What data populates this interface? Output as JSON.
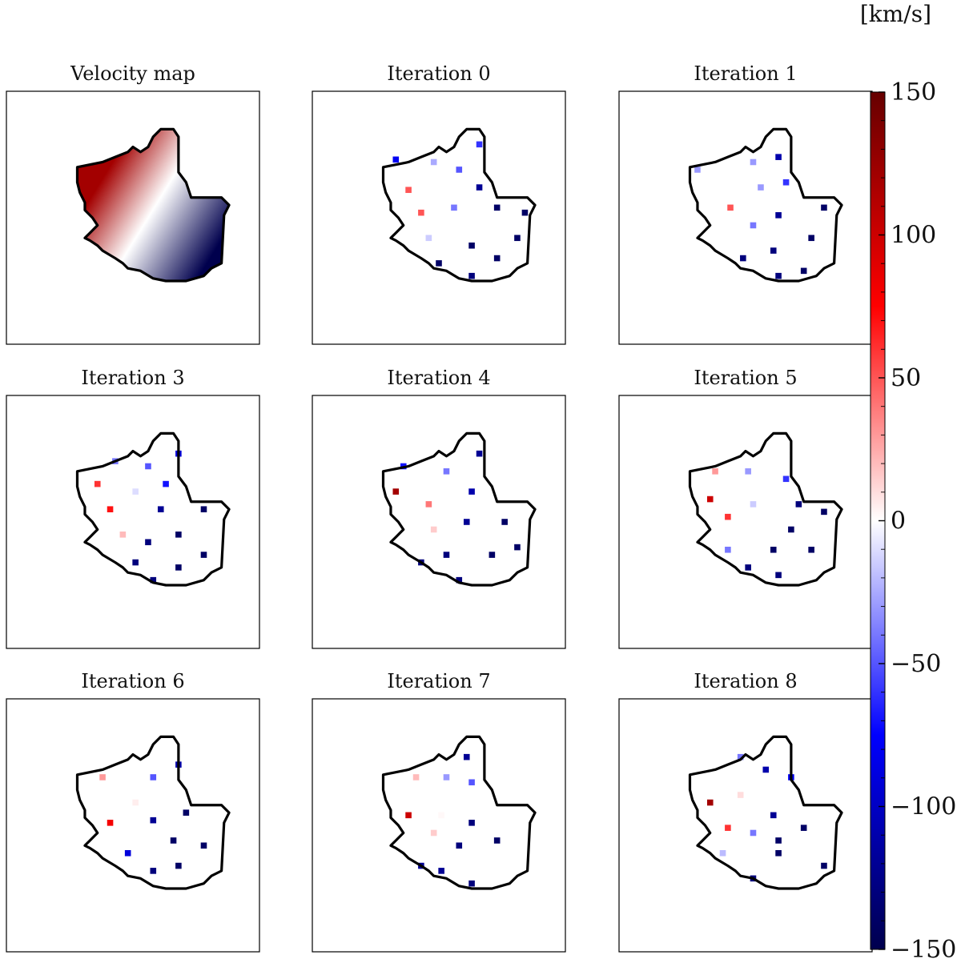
{
  "chart_data": {
    "type": "heatmap",
    "colorbar": {
      "unit": "[km/s]",
      "vmin": -150,
      "vmax": 150,
      "ticks": [
        150,
        100,
        50,
        0,
        -50,
        -100,
        -150
      ],
      "tick_labels": [
        "150",
        "100",
        "50",
        "0",
        "−50",
        "−100",
        "−150"
      ],
      "colormap": "seismic (blue-white-red)"
    },
    "panels": [
      {
        "title": "Velocity map",
        "kind": "map",
        "gradient": [
          {
            "x": 0.35,
            "y": 0.3,
            "value": 120
          },
          {
            "x": 0.55,
            "y": 0.35,
            "value": 0
          },
          {
            "x": 0.8,
            "y": 0.7,
            "value": -150
          }
        ]
      },
      {
        "title": "Iteration 0",
        "kind": "samples",
        "samples": [
          {
            "x": 0.33,
            "y": 0.27,
            "value": -80
          },
          {
            "x": 0.48,
            "y": 0.28,
            "value": -25
          },
          {
            "x": 0.58,
            "y": 0.31,
            "value": -50
          },
          {
            "x": 0.66,
            "y": 0.21,
            "value": -60
          },
          {
            "x": 0.66,
            "y": 0.38,
            "value": -120
          },
          {
            "x": 0.38,
            "y": 0.39,
            "value": 50
          },
          {
            "x": 0.43,
            "y": 0.48,
            "value": 50
          },
          {
            "x": 0.56,
            "y": 0.46,
            "value": -40
          },
          {
            "x": 0.73,
            "y": 0.46,
            "value": -140
          },
          {
            "x": 0.84,
            "y": 0.48,
            "value": -140
          },
          {
            "x": 0.46,
            "y": 0.58,
            "value": -15
          },
          {
            "x": 0.63,
            "y": 0.61,
            "value": -140
          },
          {
            "x": 0.81,
            "y": 0.58,
            "value": -140
          },
          {
            "x": 0.5,
            "y": 0.68,
            "value": -140
          },
          {
            "x": 0.73,
            "y": 0.66,
            "value": -140
          },
          {
            "x": 0.63,
            "y": 0.73,
            "value": -130
          }
        ]
      },
      {
        "title": "Iteration 1",
        "kind": "samples",
        "samples": [
          {
            "x": 0.31,
            "y": 0.31,
            "value": -30
          },
          {
            "x": 0.53,
            "y": 0.28,
            "value": -30
          },
          {
            "x": 0.63,
            "y": 0.26,
            "value": -110
          },
          {
            "x": 0.66,
            "y": 0.36,
            "value": -60
          },
          {
            "x": 0.56,
            "y": 0.38,
            "value": -30
          },
          {
            "x": 0.44,
            "y": 0.46,
            "value": 50
          },
          {
            "x": 0.63,
            "y": 0.49,
            "value": -120
          },
          {
            "x": 0.81,
            "y": 0.46,
            "value": -140
          },
          {
            "x": 0.53,
            "y": 0.53,
            "value": -40
          },
          {
            "x": 0.76,
            "y": 0.58,
            "value": -140
          },
          {
            "x": 0.49,
            "y": 0.66,
            "value": -130
          },
          {
            "x": 0.61,
            "y": 0.63,
            "value": -130
          },
          {
            "x": 0.73,
            "y": 0.71,
            "value": -140
          },
          {
            "x": 0.63,
            "y": 0.73,
            "value": -130
          }
        ]
      },
      {
        "title": "Iteration 3",
        "kind": "samples",
        "samples": [
          {
            "x": 0.43,
            "y": 0.26,
            "value": -40
          },
          {
            "x": 0.56,
            "y": 0.28,
            "value": -50
          },
          {
            "x": 0.68,
            "y": 0.23,
            "value": -90
          },
          {
            "x": 0.36,
            "y": 0.35,
            "value": 60
          },
          {
            "x": 0.51,
            "y": 0.38,
            "value": -10
          },
          {
            "x": 0.63,
            "y": 0.35,
            "value": -70
          },
          {
            "x": 0.41,
            "y": 0.45,
            "value": 70
          },
          {
            "x": 0.61,
            "y": 0.45,
            "value": -120
          },
          {
            "x": 0.78,
            "y": 0.45,
            "value": -140
          },
          {
            "x": 0.46,
            "y": 0.55,
            "value": 20
          },
          {
            "x": 0.68,
            "y": 0.55,
            "value": -140
          },
          {
            "x": 0.56,
            "y": 0.58,
            "value": -130
          },
          {
            "x": 0.51,
            "y": 0.66,
            "value": -130
          },
          {
            "x": 0.78,
            "y": 0.63,
            "value": -140
          },
          {
            "x": 0.68,
            "y": 0.68,
            "value": -140
          },
          {
            "x": 0.58,
            "y": 0.73,
            "value": -130
          }
        ]
      },
      {
        "title": "Iteration 4",
        "kind": "samples",
        "samples": [
          {
            "x": 0.36,
            "y": 0.28,
            "value": -70
          },
          {
            "x": 0.53,
            "y": 0.3,
            "value": -40
          },
          {
            "x": 0.66,
            "y": 0.23,
            "value": -120
          },
          {
            "x": 0.33,
            "y": 0.38,
            "value": 120
          },
          {
            "x": 0.63,
            "y": 0.38,
            "value": -110
          },
          {
            "x": 0.46,
            "y": 0.43,
            "value": 40
          },
          {
            "x": 0.61,
            "y": 0.5,
            "value": -120
          },
          {
            "x": 0.76,
            "y": 0.5,
            "value": -140
          },
          {
            "x": 0.48,
            "y": 0.53,
            "value": 15
          },
          {
            "x": 0.43,
            "y": 0.66,
            "value": -130
          },
          {
            "x": 0.53,
            "y": 0.63,
            "value": -130
          },
          {
            "x": 0.71,
            "y": 0.63,
            "value": -140
          },
          {
            "x": 0.81,
            "y": 0.6,
            "value": -140
          },
          {
            "x": 0.58,
            "y": 0.73,
            "value": -130
          }
        ]
      },
      {
        "title": "Iteration 5",
        "kind": "samples",
        "samples": [
          {
            "x": 0.38,
            "y": 0.3,
            "value": 30
          },
          {
            "x": 0.51,
            "y": 0.3,
            "value": -30
          },
          {
            "x": 0.66,
            "y": 0.33,
            "value": -60
          },
          {
            "x": 0.36,
            "y": 0.41,
            "value": 100
          },
          {
            "x": 0.53,
            "y": 0.43,
            "value": -15
          },
          {
            "x": 0.71,
            "y": 0.43,
            "value": -130
          },
          {
            "x": 0.81,
            "y": 0.46,
            "value": -140
          },
          {
            "x": 0.43,
            "y": 0.48,
            "value": 60
          },
          {
            "x": 0.68,
            "y": 0.53,
            "value": -140
          },
          {
            "x": 0.43,
            "y": 0.61,
            "value": -40
          },
          {
            "x": 0.61,
            "y": 0.61,
            "value": -140
          },
          {
            "x": 0.76,
            "y": 0.61,
            "value": -140
          },
          {
            "x": 0.51,
            "y": 0.68,
            "value": -130
          },
          {
            "x": 0.63,
            "y": 0.71,
            "value": -130
          }
        ]
      },
      {
        "title": "Iteration 6",
        "kind": "samples",
        "samples": [
          {
            "x": 0.38,
            "y": 0.31,
            "value": 30
          },
          {
            "x": 0.58,
            "y": 0.31,
            "value": -50
          },
          {
            "x": 0.68,
            "y": 0.26,
            "value": -110
          },
          {
            "x": 0.51,
            "y": 0.41,
            "value": 5
          },
          {
            "x": 0.41,
            "y": 0.49,
            "value": 80
          },
          {
            "x": 0.58,
            "y": 0.48,
            "value": -120
          },
          {
            "x": 0.71,
            "y": 0.45,
            "value": -140
          },
          {
            "x": 0.48,
            "y": 0.61,
            "value": -90
          },
          {
            "x": 0.66,
            "y": 0.56,
            "value": -140
          },
          {
            "x": 0.78,
            "y": 0.58,
            "value": -140
          },
          {
            "x": 0.58,
            "y": 0.68,
            "value": -130
          },
          {
            "x": 0.68,
            "y": 0.66,
            "value": -140
          }
        ]
      },
      {
        "title": "Iteration 7",
        "kind": "samples",
        "samples": [
          {
            "x": 0.41,
            "y": 0.31,
            "value": 20
          },
          {
            "x": 0.53,
            "y": 0.31,
            "value": -30
          },
          {
            "x": 0.61,
            "y": 0.23,
            "value": -120
          },
          {
            "x": 0.63,
            "y": 0.33,
            "value": -50
          },
          {
            "x": 0.38,
            "y": 0.46,
            "value": 100
          },
          {
            "x": 0.51,
            "y": 0.46,
            "value": 2
          },
          {
            "x": 0.63,
            "y": 0.49,
            "value": -130
          },
          {
            "x": 0.48,
            "y": 0.53,
            "value": 15
          },
          {
            "x": 0.58,
            "y": 0.58,
            "value": -130
          },
          {
            "x": 0.73,
            "y": 0.56,
            "value": -140
          },
          {
            "x": 0.43,
            "y": 0.66,
            "value": -120
          },
          {
            "x": 0.51,
            "y": 0.68,
            "value": -120
          },
          {
            "x": 0.63,
            "y": 0.73,
            "value": -130
          }
        ]
      },
      {
        "title": "Iteration 8",
        "kind": "samples",
        "samples": [
          {
            "x": 0.48,
            "y": 0.23,
            "value": -40
          },
          {
            "x": 0.58,
            "y": 0.28,
            "value": -110
          },
          {
            "x": 0.68,
            "y": 0.31,
            "value": -80
          },
          {
            "x": 0.36,
            "y": 0.41,
            "value": 120
          },
          {
            "x": 0.48,
            "y": 0.38,
            "value": 10
          },
          {
            "x": 0.61,
            "y": 0.46,
            "value": -120
          },
          {
            "x": 0.73,
            "y": 0.51,
            "value": -140
          },
          {
            "x": 0.43,
            "y": 0.51,
            "value": 60
          },
          {
            "x": 0.53,
            "y": 0.53,
            "value": -40
          },
          {
            "x": 0.63,
            "y": 0.56,
            "value": -140
          },
          {
            "x": 0.41,
            "y": 0.61,
            "value": -20
          },
          {
            "x": 0.63,
            "y": 0.61,
            "value": -140
          },
          {
            "x": 0.53,
            "y": 0.71,
            "value": -130
          },
          {
            "x": 0.81,
            "y": 0.66,
            "value": -140
          }
        ]
      }
    ]
  }
}
